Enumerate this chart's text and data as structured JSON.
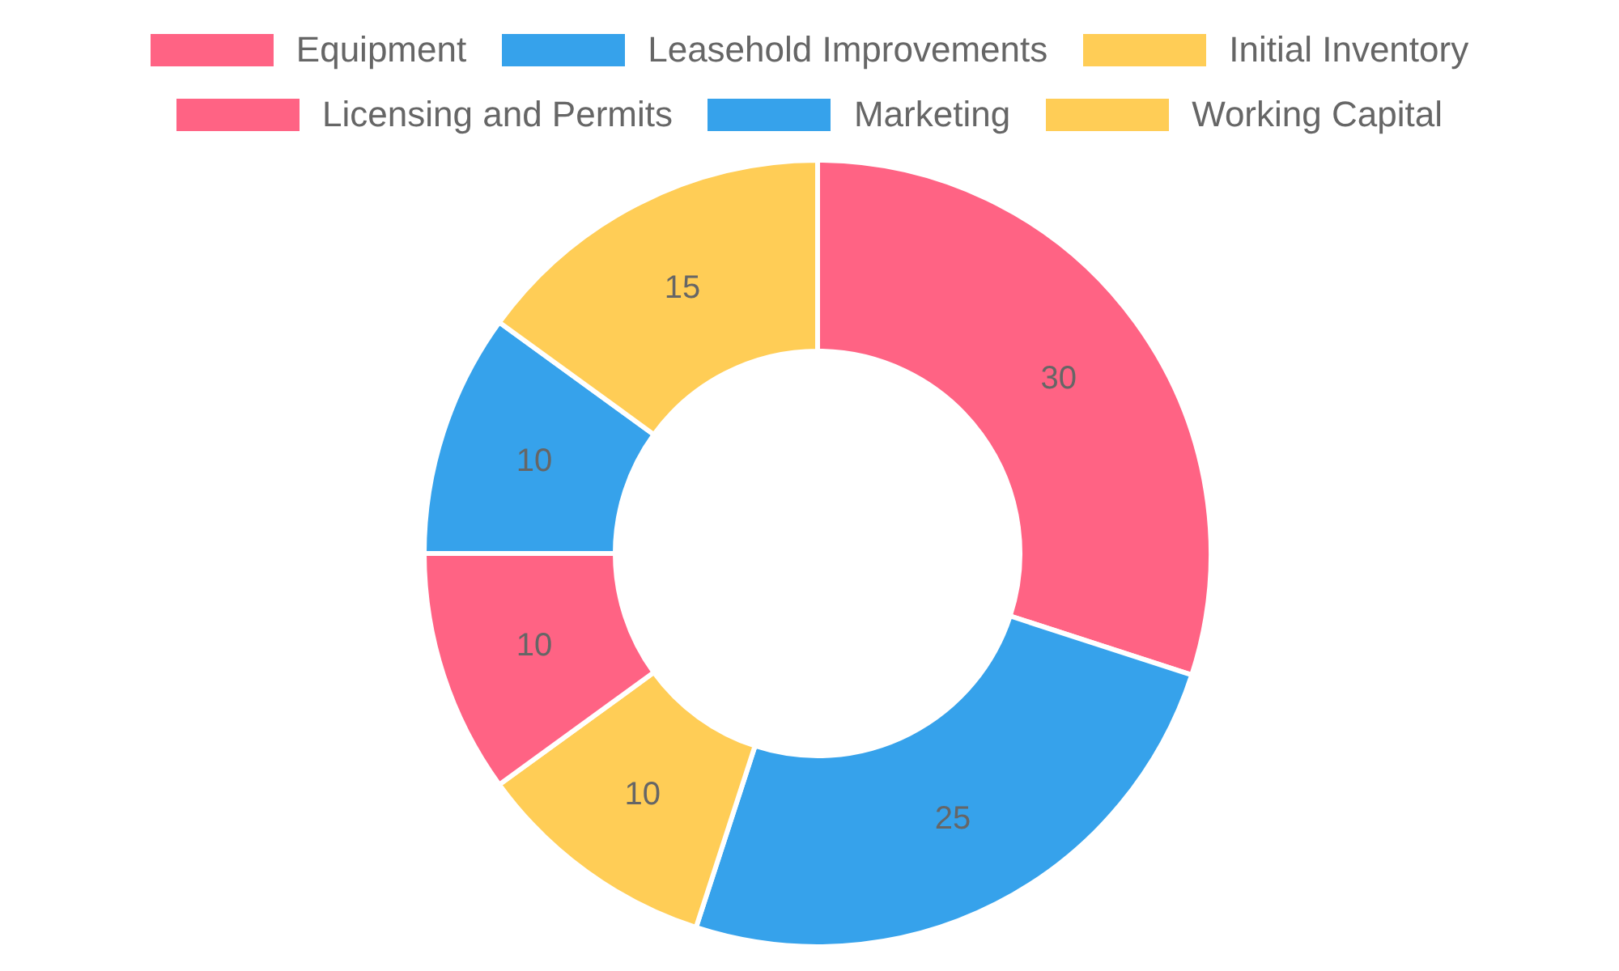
{
  "chart_data": {
    "type": "donut",
    "categories": [
      "Equipment",
      "Leasehold Improvements",
      "Initial Inventory",
      "Licensing and Permits",
      "Marketing",
      "Working Capital"
    ],
    "values": [
      30,
      25,
      10,
      10,
      10,
      15
    ],
    "colors": [
      "#ff6384",
      "#36a2eb",
      "#ffcd56",
      "#ff6384",
      "#36a2eb",
      "#ffcd56"
    ],
    "data_labels": true,
    "legend": "top"
  }
}
